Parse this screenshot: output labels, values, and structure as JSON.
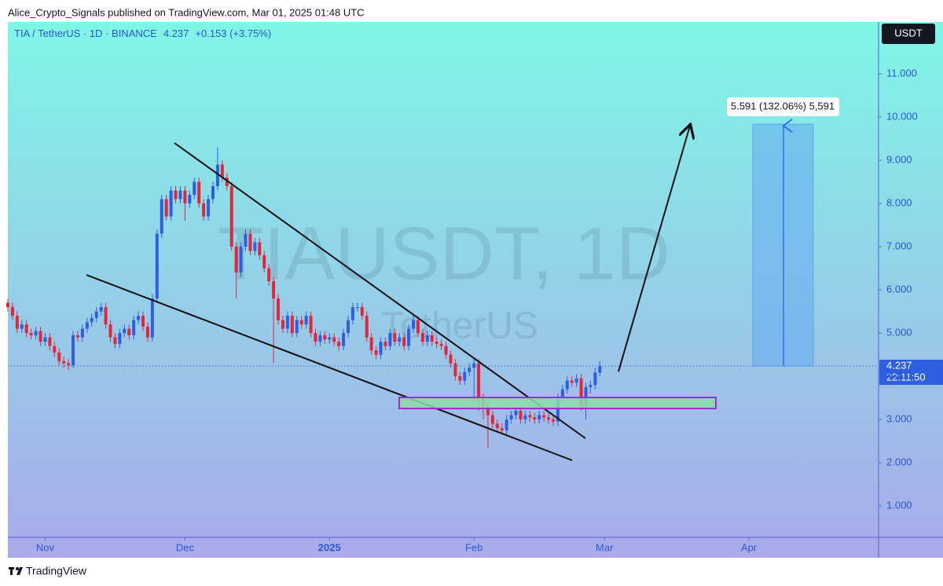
{
  "header": {
    "text": "Alice_Crypto_Signals published on TradingView.com, Mar 01, 2025 01:48 UTC"
  },
  "footer": {
    "brand": "TradingView"
  },
  "chart_data": {
    "type": "candlestick",
    "title": "TIA / TetherUS · 1D · BINANCE",
    "last_price": 4.237,
    "change": "+0.153 (+3.75%)",
    "currency": "USDT",
    "countdown": "22:11:50",
    "watermark": "TIAUSDT, 1D",
    "watermark_sub": "TetherUS",
    "measure_label": "5.591 (132.06%) 5,591",
    "up_color": "#2f5fe0",
    "down_color": "#e0283c",
    "open": [
      5.7,
      5.6,
      5.4,
      5.1,
      5.2,
      5.0,
      4.95,
      5.05,
      4.8,
      4.9,
      4.7,
      4.55,
      4.35,
      4.3,
      4.25,
      4.95,
      4.9,
      5.1,
      5.25,
      5.35,
      5.5,
      5.6,
      5.2,
      4.9,
      4.75,
      5.0,
      5.1,
      4.95,
      5.3,
      5.4,
      5.15,
      4.9,
      5.8,
      7.3,
      8.1,
      7.7,
      8.3,
      8.1,
      8.3,
      8.0,
      8.2,
      8.5,
      8.0,
      7.7,
      8.1,
      8.4,
      8.9,
      8.6,
      8.4,
      7.0,
      6.4,
      7.0,
      7.3,
      6.9,
      7.1,
      6.8,
      6.5,
      6.2,
      5.8,
      5.3,
      5.1,
      5.4,
      5.0,
      5.3,
      5.2,
      5.4,
      5.0,
      4.8,
      4.95,
      4.85,
      4.9,
      4.8,
      4.7,
      5.0,
      5.3,
      5.6,
      5.6,
      5.4,
      4.9,
      4.6,
      4.5,
      4.8,
      4.7,
      5.0,
      4.8,
      4.9,
      4.7,
      5.1,
      5.3,
      5.0,
      4.8,
      4.95,
      4.8,
      4.75,
      4.7,
      4.5,
      4.3,
      4.0,
      3.9,
      4.1,
      4.2,
      4.3,
      3.5,
      3.3,
      3.1,
      2.9,
      2.8,
      2.75,
      3.0,
      3.1,
      3.2,
      3.0,
      3.1,
      3.05,
      3.0,
      3.1,
      3.05,
      3.0,
      2.95,
      3.5,
      3.7,
      3.9,
      3.85,
      3.95,
      3.3,
      3.75,
      3.8,
      4.084
    ],
    "high": [
      5.8,
      5.7,
      5.5,
      5.3,
      5.3,
      5.1,
      5.15,
      5.15,
      5.0,
      5.0,
      4.8,
      4.65,
      4.45,
      4.4,
      5.05,
      5.05,
      5.2,
      5.35,
      5.45,
      5.6,
      5.7,
      5.7,
      5.3,
      5.0,
      5.1,
      5.2,
      5.2,
      5.4,
      5.5,
      5.5,
      5.25,
      5.9,
      7.4,
      8.2,
      8.2,
      8.4,
      8.4,
      8.4,
      8.4,
      8.3,
      8.6,
      8.6,
      8.1,
      8.2,
      8.5,
      9.3,
      9.0,
      8.7,
      8.5,
      7.1,
      7.1,
      7.4,
      7.4,
      7.2,
      7.2,
      6.9,
      6.6,
      6.3,
      5.9,
      5.4,
      5.5,
      5.5,
      5.4,
      5.4,
      5.5,
      5.5,
      5.1,
      5.05,
      5.05,
      5.0,
      5.0,
      4.9,
      5.1,
      5.4,
      5.7,
      5.7,
      5.7,
      5.5,
      5.0,
      4.7,
      4.9,
      4.9,
      5.1,
      5.1,
      5.0,
      5.0,
      5.2,
      5.4,
      5.4,
      5.1,
      5.05,
      5.05,
      4.9,
      4.85,
      4.8,
      4.6,
      4.4,
      4.1,
      4.2,
      4.3,
      4.4,
      4.4,
      3.6,
      3.4,
      3.2,
      3.0,
      2.9,
      3.1,
      3.2,
      3.3,
      3.3,
      3.2,
      3.2,
      3.15,
      3.2,
      3.2,
      3.15,
      3.1,
      3.6,
      3.8,
      4.0,
      4.0,
      4.05,
      4.05,
      3.85,
      3.9,
      4.2,
      4.35
    ],
    "low": [
      5.5,
      5.3,
      5.0,
      5.0,
      4.9,
      4.85,
      4.85,
      4.7,
      4.7,
      4.6,
      4.45,
      4.25,
      4.2,
      4.15,
      4.2,
      4.8,
      4.8,
      5.0,
      5.15,
      5.25,
      5.4,
      5.1,
      4.8,
      4.65,
      4.65,
      4.9,
      4.85,
      4.85,
      5.2,
      5.05,
      4.8,
      4.8,
      5.7,
      7.2,
      7.6,
      7.6,
      8.0,
      8.0,
      7.6,
      7.9,
      8.1,
      7.9,
      7.6,
      7.6,
      8.0,
      8.3,
      8.5,
      8.3,
      6.9,
      5.8,
      6.3,
      6.9,
      6.8,
      6.8,
      6.7,
      6.4,
      6.1,
      4.3,
      5.2,
      5.0,
      5.0,
      4.9,
      4.9,
      5.1,
      5.1,
      4.9,
      4.7,
      4.7,
      4.75,
      4.75,
      4.7,
      4.6,
      4.6,
      4.9,
      5.2,
      5.5,
      5.3,
      4.8,
      4.5,
      4.4,
      4.4,
      4.6,
      4.6,
      4.7,
      4.7,
      4.6,
      4.6,
      5.0,
      4.9,
      4.7,
      4.7,
      4.7,
      4.65,
      4.6,
      4.4,
      4.2,
      3.9,
      3.8,
      3.8,
      4.0,
      3.4,
      3.2,
      3.0,
      2.35,
      2.8,
      2.7,
      2.65,
      2.65,
      2.9,
      3.0,
      2.9,
      2.9,
      2.95,
      2.9,
      2.9,
      2.95,
      2.9,
      2.85,
      2.85,
      3.4,
      3.6,
      3.75,
      3.75,
      3.2,
      3.0,
      3.6,
      3.7,
      4.0
    ],
    "close": [
      5.6,
      5.4,
      5.1,
      5.2,
      5.0,
      4.95,
      5.05,
      4.8,
      4.9,
      4.7,
      4.55,
      4.35,
      4.3,
      4.25,
      4.95,
      4.9,
      5.1,
      5.25,
      5.35,
      5.5,
      5.6,
      5.2,
      4.9,
      4.75,
      5.0,
      5.1,
      4.95,
      5.3,
      5.4,
      5.15,
      4.9,
      5.8,
      7.3,
      8.1,
      7.7,
      8.3,
      8.1,
      8.3,
      8.0,
      8.2,
      8.5,
      8.0,
      7.7,
      8.1,
      8.4,
      8.9,
      8.6,
      8.4,
      7.0,
      6.4,
      7.0,
      7.3,
      6.9,
      7.1,
      6.8,
      6.5,
      6.2,
      5.8,
      5.3,
      5.1,
      5.4,
      5.0,
      5.3,
      5.2,
      5.4,
      5.0,
      4.8,
      4.95,
      4.85,
      4.9,
      4.8,
      4.7,
      5.0,
      5.3,
      5.6,
      5.6,
      5.4,
      4.9,
      4.6,
      4.5,
      4.8,
      4.7,
      5.0,
      4.8,
      4.9,
      4.7,
      5.1,
      5.3,
      5.0,
      4.8,
      4.95,
      4.8,
      4.75,
      4.7,
      4.5,
      4.3,
      4.0,
      3.9,
      4.1,
      4.2,
      4.3,
      3.5,
      3.3,
      3.1,
      2.9,
      2.8,
      2.75,
      3.0,
      3.1,
      3.2,
      3.0,
      3.1,
      3.05,
      3.0,
      3.1,
      3.05,
      3.0,
      2.95,
      3.5,
      3.7,
      3.9,
      3.85,
      3.95,
      3.3,
      3.75,
      3.8,
      4.084,
      4.237
    ],
    "xlim": [
      0,
      186.8
    ],
    "xticks": [
      {
        "value": 8,
        "label": "Nov"
      },
      {
        "value": 38,
        "label": "Dec"
      },
      {
        "value": 69,
        "label": "2025"
      },
      {
        "value": 100,
        "label": "Feb"
      },
      {
        "value": 128,
        "label": "Mar"
      },
      {
        "value": 159,
        "label": "Apr"
      }
    ],
    "ylim": [
      0.273,
      12.2
    ],
    "yticks": [
      {
        "value": 1,
        "label": "1.000"
      },
      {
        "value": 2,
        "label": "2.000"
      },
      {
        "value": 3,
        "label": "3.000"
      },
      {
        "value": 4,
        "label": "4.000"
      },
      {
        "value": 5,
        "label": "5.000"
      },
      {
        "value": 6,
        "label": "6.000"
      },
      {
        "value": 7,
        "label": "7.000"
      },
      {
        "value": 8,
        "label": "8.000"
      },
      {
        "value": 9,
        "label": "9.000"
      },
      {
        "value": 10,
        "label": "10.000"
      },
      {
        "value": 11,
        "label": "11.000"
      }
    ],
    "grid": false
  }
}
